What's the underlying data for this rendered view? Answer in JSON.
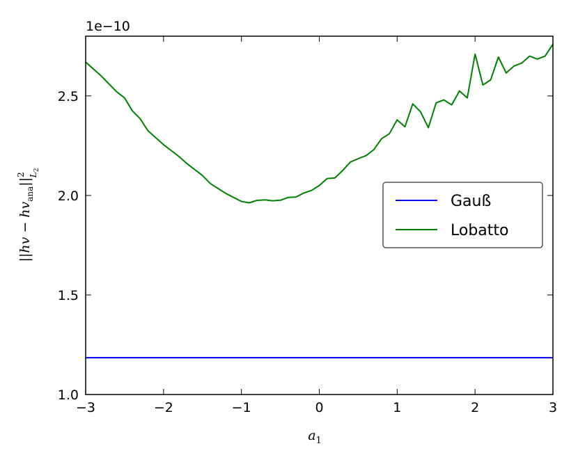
{
  "chart_data": {
    "type": "line",
    "title": "",
    "offset_text": "1e−10",
    "xlabel": "a",
    "xlabel_sub": "1",
    "ylabel": "||hv − hv",
    "ylabel_sub_ana": "ana",
    "ylabel_tail": "||",
    "ylabel_sup": "2",
    "ylabel_sub_norm": "L",
    "ylabel_sub_norm_sub": "2",
    "xlim": [
      -3,
      3
    ],
    "ylim": [
      1.0,
      2.8
    ],
    "y_scale_factor": 1e-10,
    "x_ticks": [
      -3,
      -2,
      -1,
      0,
      1,
      2,
      3
    ],
    "x_tick_labels": [
      "−3",
      "−2",
      "−1",
      "0",
      "1",
      "2",
      "3"
    ],
    "y_ticks": [
      1.0,
      1.5,
      2.0,
      2.5
    ],
    "y_tick_labels": [
      "1.0",
      "1.5",
      "2.0",
      "2.5"
    ],
    "grid": false,
    "legend_placement": "center-right",
    "series": [
      {
        "name": "Gauß",
        "color": "#0000ff",
        "x": [
          -3,
          3
        ],
        "y": [
          1.185,
          1.185
        ]
      },
      {
        "name": "Lobatto",
        "color": "#008000",
        "x": [
          -3.0,
          -2.9,
          -2.8,
          -2.7,
          -2.6,
          -2.5,
          -2.4,
          -2.3,
          -2.2,
          -2.1,
          -2.0,
          -1.9,
          -1.8,
          -1.7,
          -1.6,
          -1.5,
          -1.4,
          -1.3,
          -1.2,
          -1.1,
          -1.0,
          -0.9,
          -0.8,
          -0.7,
          -0.6,
          -0.5,
          -0.4,
          -0.3,
          -0.2,
          -0.1,
          0.0,
          0.1,
          0.2,
          0.3,
          0.4,
          0.5,
          0.6,
          0.7,
          0.8,
          0.9,
          1.0,
          1.1,
          1.2,
          1.3,
          1.4,
          1.5,
          1.6,
          1.7,
          1.8,
          1.9,
          2.0,
          2.1,
          2.2,
          2.3,
          2.4,
          2.5,
          2.6,
          2.7,
          2.8,
          2.9,
          3.0
        ],
        "y": [
          2.67,
          2.635,
          2.6,
          2.56,
          2.52,
          2.49,
          2.425,
          2.385,
          2.325,
          2.29,
          2.255,
          2.225,
          2.195,
          2.16,
          2.13,
          2.1,
          2.06,
          2.035,
          2.01,
          1.99,
          1.97,
          1.963,
          1.975,
          1.978,
          1.973,
          1.976,
          1.99,
          1.992,
          2.012,
          2.025,
          2.05,
          2.085,
          2.088,
          2.125,
          2.168,
          2.185,
          2.2,
          2.23,
          2.285,
          2.31,
          2.38,
          2.345,
          2.46,
          2.42,
          2.34,
          2.465,
          2.48,
          2.455,
          2.525,
          2.49,
          2.71,
          2.555,
          2.58,
          2.695,
          2.615,
          2.65,
          2.665,
          2.7,
          2.685,
          2.7,
          2.76
        ]
      }
    ]
  }
}
